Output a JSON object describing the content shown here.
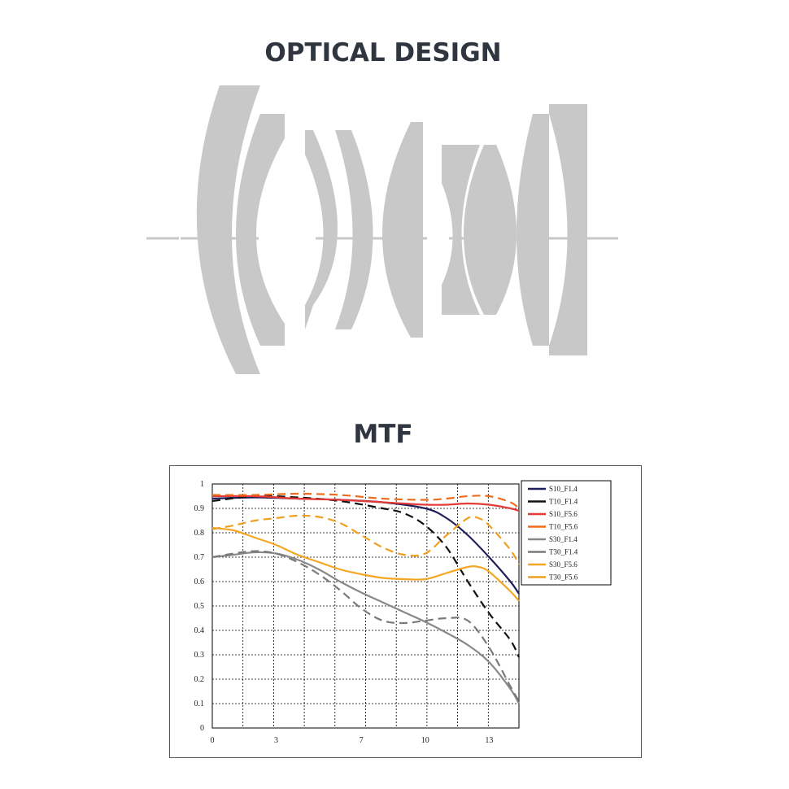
{
  "optical_title": "OPTICAL DESIGN",
  "mtf_title": "MTF",
  "lens_color": "#c8c8c8",
  "chart_data": {
    "type": "line",
    "xlim": [
      0,
      14.4
    ],
    "ylim": [
      0,
      1
    ],
    "x_ticks": [
      0,
      3,
      7,
      10,
      13
    ],
    "y_ticks": [
      "0",
      "0.1",
      "0.2",
      "0.3",
      "0.4",
      "0.5",
      "0.6",
      "0.7",
      "0.8",
      "0.9",
      "1"
    ],
    "y_tick_values": [
      0,
      0.1,
      0.2,
      0.3,
      0.4,
      0.5,
      0.6,
      0.7,
      0.8,
      0.9,
      1
    ],
    "grid": true,
    "legend_position": "top-right",
    "series": [
      {
        "name": "S10_F1.4",
        "color": "#1f1f5a",
        "dash": false,
        "x": [
          0,
          2,
          4,
          6,
          8,
          10,
          11,
          12,
          13,
          14,
          14.4
        ],
        "y": [
          0.94,
          0.945,
          0.94,
          0.935,
          0.925,
          0.9,
          0.86,
          0.79,
          0.7,
          0.6,
          0.55
        ]
      },
      {
        "name": "T10_F1.4",
        "color": "#111111",
        "dash": true,
        "x": [
          0,
          2,
          4,
          6,
          8,
          9,
          10,
          11,
          12,
          13,
          14,
          14.4
        ],
        "y": [
          0.93,
          0.95,
          0.945,
          0.93,
          0.9,
          0.88,
          0.83,
          0.74,
          0.6,
          0.47,
          0.36,
          0.29
        ]
      },
      {
        "name": "S10_F5.6",
        "color": "#e53935",
        "dash": false,
        "x": [
          0,
          2,
          4,
          6,
          8,
          9,
          10,
          11,
          12,
          13,
          14,
          14.4
        ],
        "y": [
          0.95,
          0.95,
          0.94,
          0.935,
          0.925,
          0.92,
          0.915,
          0.915,
          0.92,
          0.915,
          0.9,
          0.89
        ]
      },
      {
        "name": "T10_F5.6",
        "color": "#ef6c1a",
        "dash": true,
        "x": [
          0,
          2,
          4,
          6,
          8,
          10,
          11,
          12,
          13,
          14,
          14.4
        ],
        "y": [
          0.955,
          0.955,
          0.96,
          0.955,
          0.94,
          0.935,
          0.94,
          0.95,
          0.95,
          0.925,
          0.9
        ]
      },
      {
        "name": "S30_F1.4",
        "color": "#888888",
        "dash": false,
        "x": [
          0,
          1,
          2,
          3,
          4,
          5,
          6,
          7,
          8,
          9,
          10,
          11,
          12,
          13,
          14,
          14.4
        ],
        "y": [
          0.7,
          0.71,
          0.72,
          0.715,
          0.69,
          0.65,
          0.6,
          0.555,
          0.515,
          0.475,
          0.435,
          0.39,
          0.34,
          0.27,
          0.16,
          0.1
        ]
      },
      {
        "name": "T30_F1.4",
        "color": "#7a7a7a",
        "dash": true,
        "x": [
          0,
          1,
          2,
          3,
          4,
          5,
          6,
          7,
          8,
          9,
          10,
          11,
          12,
          13,
          14,
          14.4
        ],
        "y": [
          0.7,
          0.715,
          0.725,
          0.715,
          0.68,
          0.63,
          0.565,
          0.49,
          0.44,
          0.43,
          0.44,
          0.45,
          0.44,
          0.33,
          0.17,
          0.11
        ]
      },
      {
        "name": "S30_F5.6",
        "color": "#f5a623",
        "dash": false,
        "x": [
          0,
          1,
          2,
          3,
          4,
          5,
          6,
          7,
          8,
          9,
          10,
          11,
          12,
          12.5,
          13,
          14,
          14.4
        ],
        "y": [
          0.82,
          0.81,
          0.78,
          0.75,
          0.71,
          0.68,
          0.65,
          0.63,
          0.615,
          0.61,
          0.61,
          0.635,
          0.66,
          0.66,
          0.64,
          0.56,
          0.52
        ]
      },
      {
        "name": "T30_F5.6",
        "color": "#f0a020",
        "dash": true,
        "x": [
          0,
          1,
          2,
          3,
          4,
          5,
          6,
          7,
          8,
          9,
          10,
          11,
          12,
          12.5,
          13,
          14,
          14.4
        ],
        "y": [
          0.815,
          0.83,
          0.85,
          0.86,
          0.87,
          0.865,
          0.84,
          0.79,
          0.74,
          0.71,
          0.715,
          0.79,
          0.86,
          0.86,
          0.83,
          0.73,
          0.67
        ]
      }
    ]
  }
}
